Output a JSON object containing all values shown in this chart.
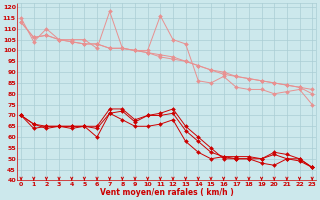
{
  "x": [
    0,
    1,
    2,
    3,
    4,
    5,
    6,
    7,
    8,
    9,
    10,
    11,
    12,
    13,
    14,
    15,
    16,
    17,
    18,
    19,
    20,
    21,
    22,
    23
  ],
  "line1": [
    115,
    104,
    110,
    105,
    105,
    105,
    101,
    118,
    101,
    100,
    100,
    116,
    105,
    103,
    86,
    85,
    88,
    83,
    82,
    82,
    80,
    81,
    82,
    75
  ],
  "line2": [
    113,
    106,
    107,
    105,
    104,
    103,
    103,
    101,
    101,
    100,
    99,
    97,
    96,
    95,
    93,
    91,
    90,
    88,
    87,
    86,
    85,
    84,
    83,
    82
  ],
  "line3": [
    113,
    106,
    107,
    105,
    104,
    103,
    103,
    101,
    101,
    100,
    99,
    98,
    97,
    95,
    93,
    91,
    89,
    88,
    87,
    86,
    85,
    84,
    83,
    80
  ],
  "line4": [
    70,
    66,
    64,
    65,
    65,
    65,
    65,
    73,
    73,
    68,
    70,
    71,
    73,
    65,
    60,
    55,
    50,
    50,
    50,
    50,
    53,
    52,
    50,
    46
  ],
  "line5": [
    70,
    66,
    65,
    65,
    64,
    65,
    64,
    71,
    72,
    67,
    70,
    70,
    71,
    63,
    58,
    53,
    51,
    51,
    51,
    50,
    52,
    50,
    49,
    46
  ],
  "line6": [
    70,
    64,
    65,
    65,
    65,
    65,
    60,
    71,
    68,
    65,
    65,
    66,
    68,
    58,
    53,
    50,
    51,
    50,
    50,
    48,
    47,
    50,
    50,
    46
  ],
  "background": "#cce8ec",
  "grid_color": "#aacdd4",
  "line_color_light": "#e89090",
  "line_color_dark": "#cc0000",
  "xlabel": "Vent moyen/en rafales ( km/h )",
  "ylim": [
    40,
    122
  ],
  "xlim": [
    -0.3,
    23.3
  ],
  "yticks": [
    40,
    45,
    50,
    55,
    60,
    65,
    70,
    75,
    80,
    85,
    90,
    95,
    100,
    105,
    110,
    115,
    120
  ],
  "xticks": [
    0,
    1,
    2,
    3,
    4,
    5,
    6,
    7,
    8,
    9,
    10,
    11,
    12,
    13,
    14,
    15,
    16,
    17,
    18,
    19,
    20,
    21,
    22,
    23
  ],
  "label_color": "#cc0000"
}
